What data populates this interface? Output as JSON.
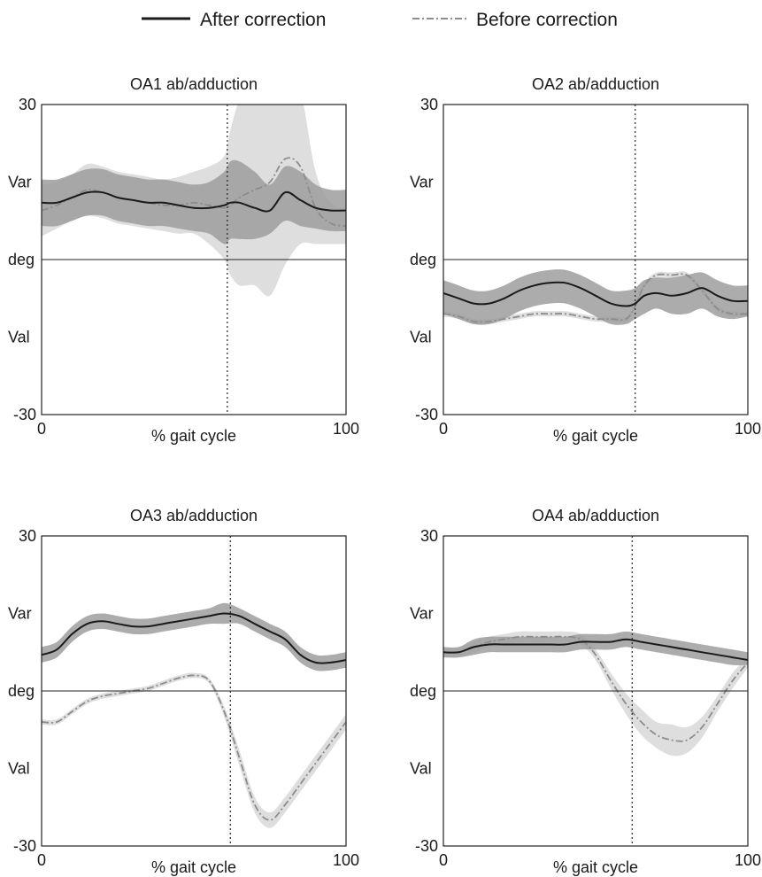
{
  "legend": {
    "after_label": "After correction",
    "before_label": "Before correction"
  },
  "colors": {
    "after_line": "#1a1a1a",
    "after_band": "#9e9e9e",
    "before_line": "#8c8c8c",
    "before_band": "#dedede",
    "axis": "#222222"
  },
  "chart_data": [
    {
      "type": "line",
      "title": "OA1 ab/adduction",
      "xlabel": "% gait cycle",
      "ylabels": [
        "Var",
        "deg",
        "Val"
      ],
      "xlim": [
        0,
        100
      ],
      "ylim": [
        -30,
        30
      ],
      "xticks": [
        "0",
        "100"
      ],
      "yticks": [
        "30",
        "-30"
      ],
      "zero_line": 0,
      "vline_x": 61,
      "series": [
        {
          "name": "Before correction",
          "style": "dash-dot",
          "x": [
            0,
            5,
            10,
            15,
            20,
            25,
            30,
            35,
            40,
            45,
            50,
            55,
            60,
            62,
            65,
            70,
            75,
            80,
            85,
            90,
            95,
            100
          ],
          "y": [
            9.5,
            10.5,
            12,
            13.5,
            13,
            12,
            11.5,
            11,
            10.5,
            10.5,
            11,
            10.5,
            10,
            10.5,
            12,
            13.5,
            15,
            19.5,
            18,
            10,
            7,
            6.5
          ],
          "band_lower": [
            4.5,
            6,
            7.5,
            8.5,
            8,
            7,
            6.5,
            6,
            5.5,
            5,
            5,
            3,
            0,
            -3,
            -5,
            -5,
            -7,
            -1,
            3,
            3,
            3,
            3
          ],
          "band_upper": [
            14.5,
            15,
            16.5,
            18.5,
            18,
            17,
            16.5,
            16,
            15.5,
            16,
            17,
            18,
            20,
            25,
            31,
            36,
            43,
            40,
            33,
            17,
            11,
            10
          ]
        },
        {
          "name": "After correction",
          "style": "solid",
          "x": [
            0,
            5,
            10,
            15,
            20,
            25,
            30,
            35,
            40,
            45,
            50,
            55,
            60,
            62,
            65,
            70,
            75,
            80,
            85,
            90,
            95,
            100
          ],
          "y": [
            11,
            11,
            12,
            13,
            13,
            12,
            11.5,
            11,
            11,
            10.5,
            10,
            10,
            10.5,
            11,
            11,
            10,
            9.5,
            13,
            11.5,
            10,
            9.5,
            9.5
          ],
          "band_lower": [
            6.5,
            6.5,
            7.5,
            8.5,
            8.5,
            7.5,
            7,
            6.5,
            6.5,
            6,
            5.5,
            5,
            3,
            4,
            4,
            4,
            5,
            7.5,
            6.5,
            6,
            5.5,
            5.5
          ],
          "band_upper": [
            15.5,
            15.5,
            16.5,
            17.5,
            17.5,
            16.5,
            16,
            15.5,
            15.5,
            15,
            14.5,
            15,
            17,
            19,
            19,
            17,
            14.5,
            18,
            17,
            14.5,
            13.5,
            13.5
          ]
        }
      ]
    },
    {
      "type": "line",
      "title": "OA2 ab/adduction",
      "xlabel": "% gait cycle",
      "ylabels": [
        "Var",
        "deg",
        "Val"
      ],
      "xlim": [
        0,
        100
      ],
      "ylim": [
        -30,
        30
      ],
      "xticks": [
        "0",
        "100"
      ],
      "yticks": [
        "30",
        "-30"
      ],
      "zero_line": 0,
      "vline_x": 63,
      "series": [
        {
          "name": "Before correction",
          "style": "dash-dot",
          "x": [
            0,
            5,
            10,
            15,
            20,
            25,
            30,
            35,
            40,
            45,
            50,
            55,
            60,
            63,
            66,
            70,
            75,
            80,
            85,
            90,
            95,
            100
          ],
          "y": [
            -10.5,
            -11,
            -12,
            -12,
            -11.5,
            -11,
            -10.5,
            -10.5,
            -10.5,
            -11,
            -11.5,
            -11.5,
            -11.5,
            -9,
            -5,
            -3,
            -3,
            -3,
            -6,
            -9.5,
            -10.5,
            -10.5
          ],
          "band_lower": [
            -11,
            -11.5,
            -12.5,
            -12.5,
            -12,
            -11.5,
            -11,
            -11,
            -11,
            -11.5,
            -12,
            -12,
            -12,
            -9.5,
            -5.5,
            -3.5,
            -3.5,
            -3.5,
            -6.5,
            -10,
            -11,
            -11
          ],
          "band_upper": [
            -10,
            -10.5,
            -11.5,
            -11.5,
            -11,
            -10.5,
            -10,
            -10,
            -10,
            -10.5,
            -11,
            -11,
            -11,
            -8.5,
            -4.5,
            -2.5,
            -2.5,
            -2.5,
            -5.5,
            -9,
            -10,
            -10
          ]
        },
        {
          "name": "After correction",
          "style": "solid",
          "x": [
            0,
            5,
            10,
            15,
            20,
            25,
            30,
            35,
            40,
            45,
            50,
            55,
            60,
            63,
            66,
            70,
            75,
            80,
            85,
            90,
            95,
            100
          ],
          "y": [
            -6.5,
            -7.5,
            -8.5,
            -8.5,
            -7.5,
            -6,
            -5,
            -4.5,
            -4.5,
            -5.5,
            -7,
            -8.5,
            -9,
            -8.5,
            -7,
            -6.5,
            -7,
            -6.5,
            -5.5,
            -7,
            -8,
            -8
          ],
          "band_lower": [
            -10.5,
            -11.5,
            -12.5,
            -12.5,
            -11.5,
            -10,
            -9,
            -8.5,
            -8.5,
            -9.5,
            -11,
            -12.5,
            -12.5,
            -11.5,
            -10.5,
            -9.5,
            -10.5,
            -10.5,
            -9.5,
            -11,
            -11.5,
            -11
          ],
          "band_upper": [
            -4,
            -5,
            -6,
            -6,
            -5,
            -3.5,
            -2.5,
            -2,
            -2,
            -3,
            -4.5,
            -6,
            -6,
            -5.5,
            -4,
            -3.5,
            -3.5,
            -3,
            -2.5,
            -4,
            -5,
            -5
          ]
        }
      ]
    },
    {
      "type": "line",
      "title": "OA3 ab/adduction",
      "xlabel": "% gait cycle",
      "ylabels": [
        "Var",
        "deg",
        "Val"
      ],
      "xlim": [
        0,
        100
      ],
      "ylim": [
        -30,
        30
      ],
      "xticks": [
        "0",
        "100"
      ],
      "yticks": [
        "30",
        "-30"
      ],
      "zero_line": 0,
      "vline_x": 62,
      "series": [
        {
          "name": "Before correction",
          "style": "dash-dot",
          "x": [
            0,
            5,
            10,
            15,
            20,
            25,
            30,
            35,
            40,
            45,
            50,
            55,
            60,
            65,
            70,
            75,
            80,
            85,
            90,
            95,
            100
          ],
          "y": [
            -6,
            -6,
            -4,
            -2,
            -1,
            -0.5,
            0,
            0.5,
            1.5,
            2.5,
            3,
            2,
            -4,
            -13,
            -22,
            -25,
            -22,
            -18,
            -14,
            -10,
            -6
          ],
          "band_lower": [
            -6.5,
            -6.5,
            -4.5,
            -2.5,
            -1.5,
            -1,
            -0.5,
            0,
            1,
            2,
            2.5,
            1.5,
            -5,
            -14.5,
            -23.5,
            -26.5,
            -23.5,
            -19.5,
            -15.5,
            -11.5,
            -7.5
          ],
          "band_upper": [
            -5.5,
            -5.5,
            -3.5,
            -1.5,
            -0.5,
            0,
            0.5,
            1,
            2,
            3,
            3.5,
            2.5,
            -3,
            -11.5,
            -20.5,
            -23.5,
            -20.5,
            -16.5,
            -12.5,
            -8.5,
            -4.5
          ]
        },
        {
          "name": "After correction",
          "style": "solid",
          "x": [
            0,
            5,
            10,
            15,
            20,
            25,
            30,
            35,
            40,
            45,
            50,
            55,
            60,
            65,
            70,
            75,
            80,
            85,
            90,
            95,
            100
          ],
          "y": [
            7,
            8,
            11,
            13,
            13.5,
            13,
            12.5,
            12.5,
            13,
            13.5,
            14,
            14.5,
            15,
            14.5,
            13,
            11.5,
            10,
            7,
            5.5,
            5.5,
            6
          ],
          "band_lower": [
            5.5,
            6.5,
            9.5,
            11.5,
            12,
            11.5,
            11,
            11,
            11.5,
            12,
            12.5,
            13,
            13,
            13,
            11.5,
            10,
            8.5,
            5.5,
            4,
            4,
            4.5
          ],
          "band_upper": [
            8.5,
            9.5,
            12.5,
            14.5,
            15,
            14.5,
            14,
            14,
            14.5,
            15,
            15.5,
            16,
            17,
            16,
            14.5,
            13,
            11.5,
            8.5,
            7,
            7,
            7.5
          ]
        }
      ]
    },
    {
      "type": "line",
      "title": "OA4 ab/adduction",
      "xlabel": "% gait cycle",
      "ylabels": [
        "Var",
        "deg",
        "Val"
      ],
      "xlim": [
        0,
        100
      ],
      "ylim": [
        -30,
        30
      ],
      "xticks": [
        "0",
        "100"
      ],
      "yticks": [
        "30",
        "-30"
      ],
      "zero_line": 0,
      "vline_x": 62,
      "series": [
        {
          "name": "Before correction",
          "style": "dash-dot",
          "x": [
            0,
            5,
            10,
            15,
            20,
            25,
            30,
            35,
            40,
            45,
            50,
            55,
            60,
            65,
            70,
            75,
            80,
            85,
            90,
            95,
            100
          ],
          "y": [
            7.5,
            7.5,
            8.5,
            9.5,
            10,
            10.5,
            10.5,
            10.5,
            10.5,
            10,
            7,
            2,
            -2.5,
            -6,
            -8.5,
            -9.5,
            -9.5,
            -7,
            -2.5,
            2,
            5.5
          ],
          "band_lower": [
            6.5,
            6.5,
            7.5,
            8.5,
            9,
            9.5,
            9.5,
            9.5,
            9.5,
            9,
            6,
            0.5,
            -4.5,
            -8.5,
            -11,
            -12.5,
            -12,
            -9,
            -4,
            0.5,
            4.5
          ],
          "band_upper": [
            8.5,
            8.5,
            9.5,
            10.5,
            11,
            11.5,
            11.5,
            11.5,
            11.5,
            11,
            8,
            3.5,
            -0.5,
            -3.5,
            -6,
            -6.5,
            -7,
            -5,
            -1,
            3.5,
            6.5
          ]
        },
        {
          "name": "After correction",
          "style": "solid",
          "x": [
            0,
            5,
            10,
            15,
            20,
            25,
            30,
            35,
            40,
            45,
            50,
            55,
            60,
            65,
            70,
            75,
            80,
            85,
            90,
            95,
            100
          ],
          "y": [
            7.5,
            7.5,
            8.5,
            9,
            9,
            9,
            9,
            9,
            9,
            9.5,
            9.5,
            9.5,
            10,
            9.5,
            9,
            8.5,
            8,
            7.5,
            7,
            6.5,
            6
          ],
          "band_lower": [
            6.5,
            6.5,
            7,
            7.5,
            7.5,
            7.5,
            7.5,
            7.5,
            7.5,
            8,
            8,
            8,
            8.5,
            8,
            7.5,
            7,
            6.5,
            6,
            5.5,
            5,
            5
          ],
          "band_upper": [
            8.5,
            8.5,
            10,
            10.5,
            10.5,
            10.5,
            10.5,
            10.5,
            10.5,
            11,
            11,
            11,
            11.5,
            11,
            10.5,
            10,
            9.5,
            9,
            8.5,
            8,
            7.5
          ]
        }
      ]
    }
  ]
}
